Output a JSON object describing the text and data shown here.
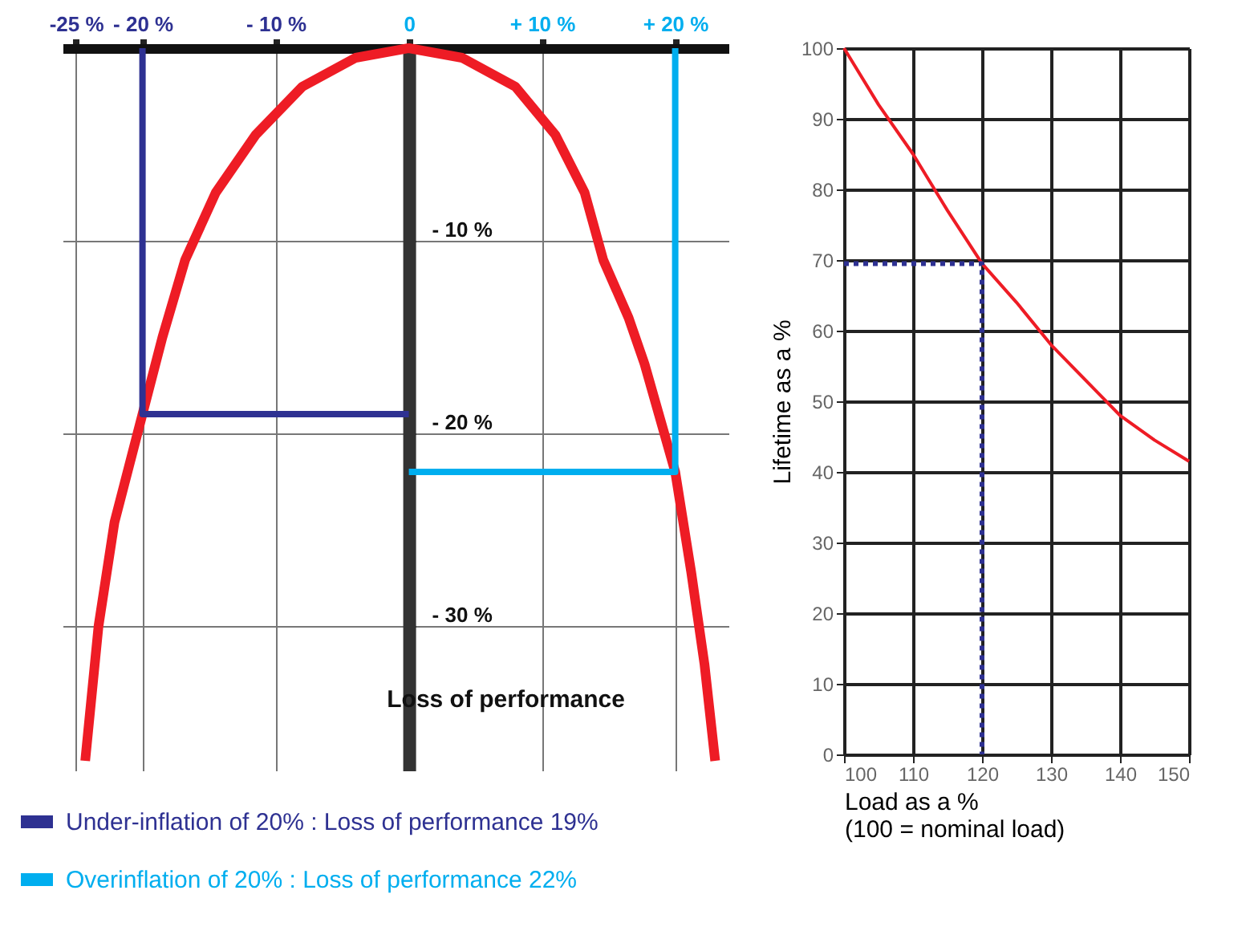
{
  "chart_data": [
    {
      "type": "line",
      "ylabel": "Loss of performance",
      "xlim": [
        -26,
        24
      ],
      "ylim": [
        -37.5,
        0
      ],
      "xticks": [
        {
          "value": -25,
          "label": "-25 %"
        },
        {
          "value": -20,
          "label": "- 20 %"
        },
        {
          "value": -10,
          "label": "- 10 %"
        },
        0,
        {
          "value": 10,
          "label": "+ 10 %"
        },
        {
          "value": 20,
          "label": "+ 20 %"
        }
      ],
      "yticks": [
        {
          "value": -10,
          "label": "- 10 %"
        },
        {
          "value": -20,
          "label": "- 20 %"
        },
        {
          "value": -30,
          "label": "- 30 %"
        }
      ],
      "grid": true,
      "legend": "bottom left",
      "marker": "none",
      "series": [
        {
          "color": "#ee1c25",
          "x": [
            -24.3,
            -23.3,
            -22.1,
            -20,
            -18.5,
            -16.8,
            -14.5,
            -11.5,
            -8,
            -4,
            0,
            4,
            8,
            11,
            13.2,
            14.6,
            16.5,
            17.7,
            20,
            21.2,
            22.2,
            23
          ],
          "values": [
            -37,
            -30,
            -24.6,
            -19,
            -15,
            -11,
            -7.5,
            -4.5,
            -2,
            -0.5,
            0,
            -0.5,
            -2,
            -4.5,
            -7.5,
            -11,
            -14,
            -16.4,
            -22,
            -27.2,
            -32,
            -37
          ]
        },
        {
          "name": "Under-inflation of 20% : Loss of performance 19%",
          "color": "#2e3192",
          "x": [
            -20,
            -20,
            0
          ],
          "values": [
            0,
            -19,
            -19
          ]
        },
        {
          "name": "Overinflation of 20% : Loss of performance 22%",
          "color": "#00aeef",
          "x": [
            20,
            20,
            0
          ],
          "values": [
            0,
            -22,
            -22
          ]
        }
      ]
    },
    {
      "type": "line",
      "xlabel": "Load as a %\n(100 = nominal load)",
      "ylabel": "Lifetime as a %",
      "xlim": [
        100,
        150
      ],
      "ylim": [
        0,
        100
      ],
      "xticks": [
        100,
        110,
        120,
        130,
        140,
        150
      ],
      "yticks": [
        0,
        10,
        20,
        30,
        40,
        50,
        60,
        70,
        80,
        90,
        100
      ],
      "grid": true,
      "marker": "none",
      "series": [
        {
          "color": "#ee1c25",
          "x": [
            100,
            105,
            110,
            115,
            120,
            125,
            130,
            135,
            140,
            145,
            150
          ],
          "values": [
            100,
            92,
            85,
            77,
            69.5,
            64,
            58,
            53,
            48,
            44.5,
            41.5
          ]
        },
        {
          "color": "#2e3192",
          "line_style": "dotted",
          "x": [
            100,
            120,
            120
          ],
          "values": [
            69.5,
            69.5,
            0
          ]
        }
      ]
    }
  ]
}
